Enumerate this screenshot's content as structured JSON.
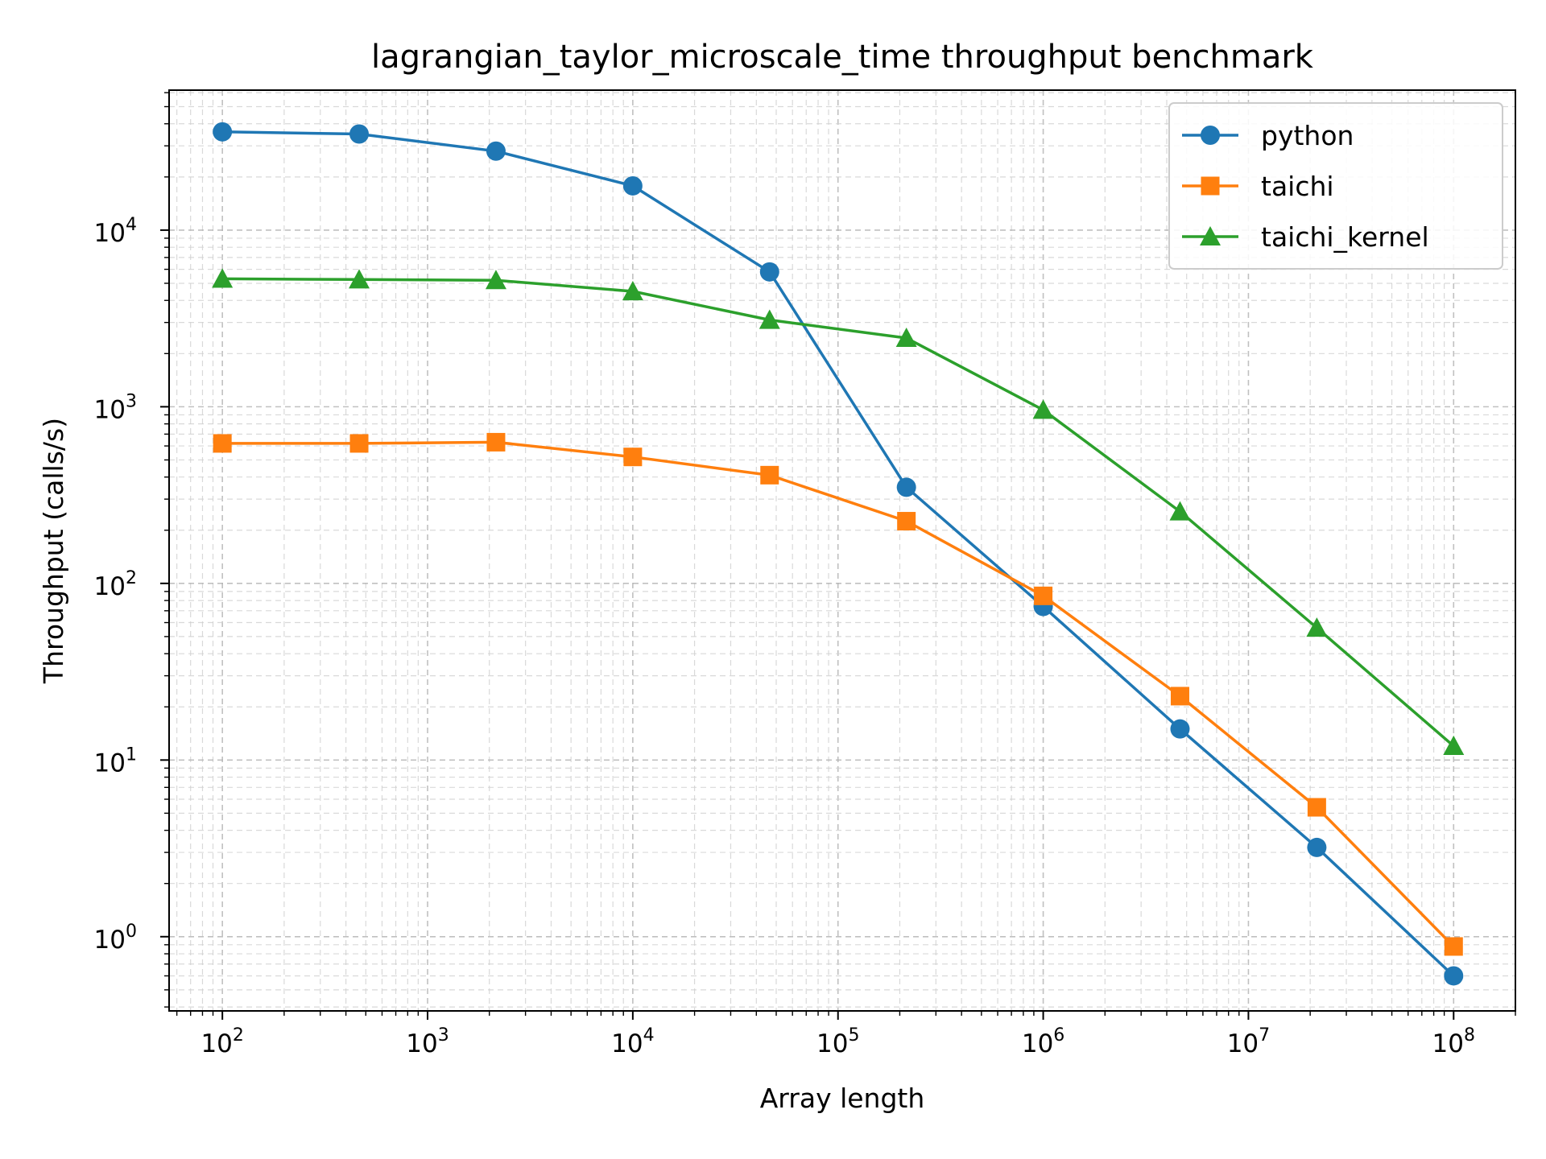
{
  "chart_data": {
    "type": "line",
    "title": "lagrangian_taylor_microscale_time throughput benchmark",
    "xlabel": "Array length",
    "ylabel": "Throughput (calls/s)",
    "xscale": "log",
    "yscale": "log",
    "xlim": [
      55,
      200000000
    ],
    "ylim": [
      0.38,
      62000
    ],
    "grid": true,
    "legend_position": "top-right",
    "x_ticks": [
      {
        "base": "10",
        "exp": "2",
        "value": 100
      },
      {
        "base": "10",
        "exp": "3",
        "value": 1000
      },
      {
        "base": "10",
        "exp": "4",
        "value": 10000
      },
      {
        "base": "10",
        "exp": "5",
        "value": 100000
      },
      {
        "base": "10",
        "exp": "6",
        "value": 1000000
      },
      {
        "base": "10",
        "exp": "7",
        "value": 10000000
      },
      {
        "base": "10",
        "exp": "8",
        "value": 100000000
      }
    ],
    "y_ticks": [
      {
        "base": "10",
        "exp": "0",
        "value": 1
      },
      {
        "base": "10",
        "exp": "1",
        "value": 10
      },
      {
        "base": "10",
        "exp": "2",
        "value": 100
      },
      {
        "base": "10",
        "exp": "3",
        "value": 1000
      },
      {
        "base": "10",
        "exp": "4",
        "value": 10000
      }
    ],
    "x": [
      100,
      464,
      2154,
      10000,
      46416,
      215443,
      1000000,
      4641589,
      21544347,
      100000000
    ],
    "series": [
      {
        "name": "python",
        "color": "#1f77b4",
        "marker": "circle",
        "values": [
          36000,
          35000,
          28000,
          17800,
          5800,
          350,
          74,
          15,
          3.2,
          0.6
        ]
      },
      {
        "name": "taichi",
        "color": "#ff7f0e",
        "marker": "square",
        "values": [
          620,
          620,
          630,
          520,
          410,
          225,
          85,
          23,
          5.4,
          0.88
        ]
      },
      {
        "name": "taichi_kernel",
        "color": "#2ca02c",
        "marker": "triangle",
        "values": [
          5300,
          5250,
          5200,
          4500,
          3100,
          2450,
          960,
          255,
          56,
          12
        ]
      }
    ]
  }
}
